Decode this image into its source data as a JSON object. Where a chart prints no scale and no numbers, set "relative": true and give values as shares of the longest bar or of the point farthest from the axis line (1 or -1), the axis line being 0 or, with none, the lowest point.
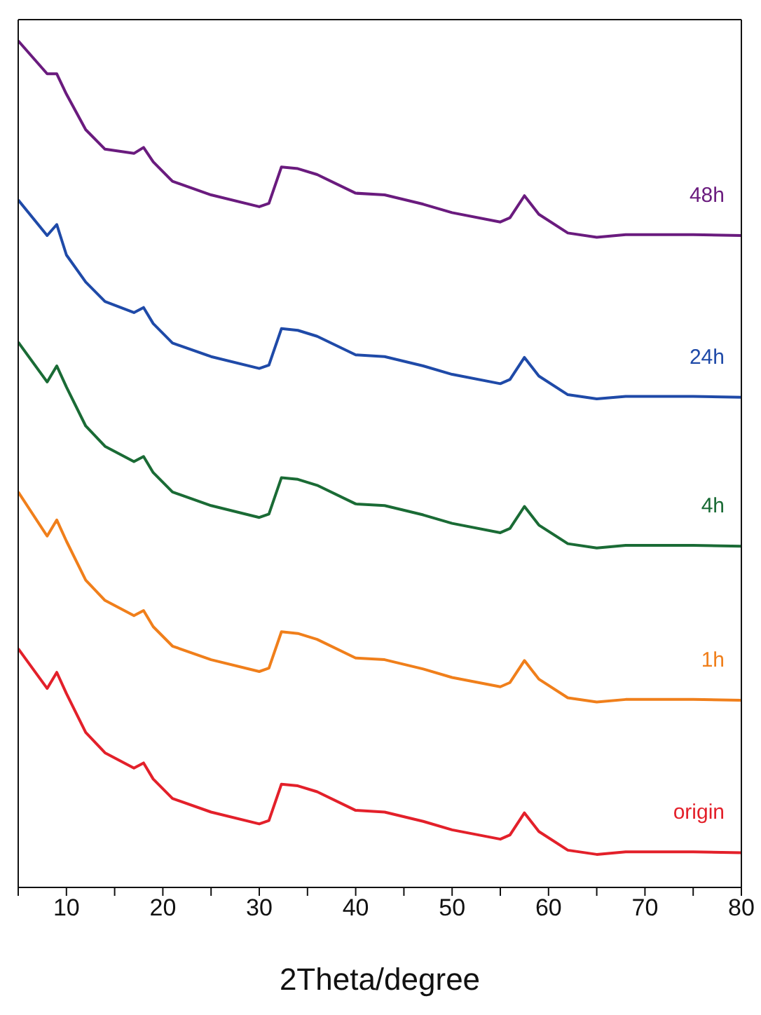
{
  "chart_data": {
    "type": "line",
    "relative": true,
    "xlabel": "2Theta/degree",
    "legend": false,
    "marker": "none",
    "line_style": "solid",
    "x": [
      5,
      8,
      9,
      10,
      12,
      14,
      17,
      18,
      19,
      21,
      25,
      30,
      31,
      32.3,
      34,
      36,
      40,
      43,
      47,
      50,
      55,
      56,
      57.5,
      59,
      62,
      65,
      68,
      75,
      80
    ],
    "xlim": [
      5,
      80
    ],
    "xticks": [
      {
        "value": 5,
        "label": null
      },
      10,
      {
        "value": 15,
        "label": null
      },
      20,
      {
        "value": 25,
        "label": null
      },
      30,
      {
        "value": 35,
        "label": null
      },
      40,
      {
        "value": 45,
        "label": null
      },
      50,
      {
        "value": 55,
        "label": null
      },
      60,
      {
        "value": 65,
        "label": null
      },
      70,
      {
        "value": 75,
        "label": null
      },
      80
    ],
    "series": [
      {
        "name": "48h",
        "color": "#6a1b7e",
        "values": [
          1.0,
          0.961,
          0.961,
          0.937,
          0.895,
          0.872,
          0.867,
          0.874,
          0.857,
          0.834,
          0.818,
          0.804,
          0.808,
          0.851,
          0.849,
          0.842,
          0.82,
          0.818,
          0.807,
          0.797,
          0.786,
          0.791,
          0.817,
          0.795,
          0.773,
          0.768,
          0.771,
          0.771,
          0.77
        ]
      },
      {
        "name": "24h",
        "color": "#1f4aa8",
        "values": [
          0.812,
          0.77,
          0.783,
          0.747,
          0.715,
          0.692,
          0.679,
          0.685,
          0.666,
          0.643,
          0.627,
          0.613,
          0.617,
          0.66,
          0.658,
          0.651,
          0.629,
          0.627,
          0.616,
          0.606,
          0.595,
          0.6,
          0.626,
          0.604,
          0.582,
          0.577,
          0.58,
          0.58,
          0.579
        ]
      },
      {
        "name": "4h",
        "color": "#1a6b35",
        "values": [
          0.644,
          0.597,
          0.616,
          0.591,
          0.545,
          0.521,
          0.503,
          0.509,
          0.49,
          0.467,
          0.451,
          0.437,
          0.441,
          0.484,
          0.482,
          0.475,
          0.453,
          0.451,
          0.44,
          0.43,
          0.419,
          0.424,
          0.45,
          0.428,
          0.406,
          0.401,
          0.404,
          0.404,
          0.403
        ]
      },
      {
        "name": "1h",
        "color": "#f07f1b",
        "values": [
          0.467,
          0.415,
          0.434,
          0.409,
          0.363,
          0.339,
          0.321,
          0.327,
          0.308,
          0.285,
          0.269,
          0.255,
          0.259,
          0.302,
          0.3,
          0.293,
          0.271,
          0.269,
          0.258,
          0.248,
          0.237,
          0.242,
          0.268,
          0.246,
          0.224,
          0.219,
          0.222,
          0.222,
          0.221
        ]
      },
      {
        "name": "origin",
        "color": "#e3202a",
        "values": [
          0.282,
          0.235,
          0.254,
          0.229,
          0.183,
          0.159,
          0.141,
          0.147,
          0.128,
          0.105,
          0.089,
          0.075,
          0.079,
          0.122,
          0.12,
          0.113,
          0.091,
          0.089,
          0.078,
          0.068,
          0.057,
          0.062,
          0.088,
          0.066,
          0.044,
          0.039,
          0.042,
          0.042,
          0.041
        ]
      }
    ]
  }
}
